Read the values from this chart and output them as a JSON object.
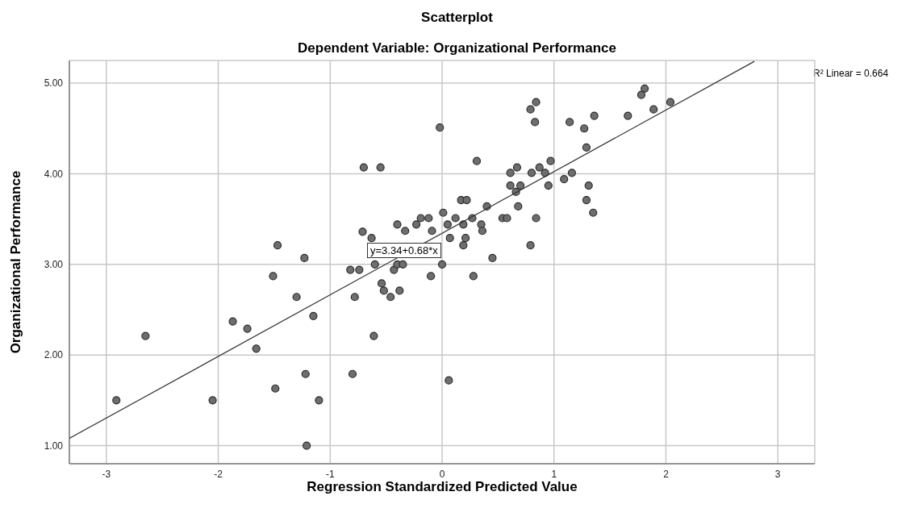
{
  "chart_data": {
    "type": "scatter",
    "title": "Scatterplot",
    "subtitle": "Dependent Variable: Organizational Performance",
    "xlabel": "Regression Standardized Predicted Value",
    "ylabel": "Organizational Performance",
    "xlim": [
      -3.33,
      3.33
    ],
    "xticks": [
      -3,
      -2,
      -1,
      0,
      1,
      2,
      3
    ],
    "ylim": [
      0.8,
      5.25
    ],
    "yticks": [
      {
        "value": 1,
        "label": "1.00"
      },
      {
        "value": 2,
        "label": "2.00"
      },
      {
        "value": 3,
        "label": "3.00"
      },
      {
        "value": 4,
        "label": "4.00"
      },
      {
        "value": 5,
        "label": "5.00"
      }
    ],
    "grid": true,
    "annotations": [
      "R² Linear = 0.664",
      "y=3.34+0.68*x"
    ],
    "series": [
      {
        "marker": "circle",
        "color": "#6e6e6e",
        "x": [
          -2.91,
          -2.05,
          -2.65,
          -1.87,
          -1.74,
          -1.66,
          -1.51,
          -1.47,
          -1.23,
          -1.3,
          -1.15,
          -1.22,
          -1.49,
          -1.1,
          -1.21,
          -0.8,
          -0.61,
          -0.82,
          -0.74,
          -0.78,
          -0.54,
          -0.52,
          -0.46,
          -0.6,
          -0.63,
          -0.71,
          -0.02,
          -0.7,
          -0.55,
          0.31,
          -0.43,
          -0.4,
          -0.35,
          -0.38,
          0.06,
          -0.1,
          0.0,
          0.28,
          0.45,
          0.79,
          -0.4,
          -0.33,
          -0.23,
          -0.19,
          -0.12,
          -0.09,
          0.01,
          0.05,
          0.07,
          0.12,
          0.19,
          0.21,
          0.19,
          0.17,
          0.22,
          0.27,
          0.35,
          0.36,
          0.4,
          0.54,
          0.58,
          0.84,
          0.68,
          0.61,
          0.67,
          0.61,
          0.7,
          0.66,
          0.8,
          0.87,
          0.92,
          0.97,
          0.95,
          1.09,
          1.16,
          0.83,
          1.14,
          0.84,
          0.79,
          1.27,
          1.36,
          1.66,
          1.81,
          1.78,
          1.89,
          2.04,
          1.29,
          1.31,
          1.29,
          1.35
        ],
        "values": [
          1.5,
          1.5,
          2.21,
          2.37,
          2.29,
          2.07,
          2.87,
          3.21,
          3.07,
          2.64,
          2.43,
          1.79,
          1.63,
          1.5,
          1.0,
          1.79,
          2.21,
          2.94,
          2.94,
          2.64,
          2.79,
          2.71,
          2.64,
          3.0,
          3.29,
          3.36,
          4.51,
          4.07,
          4.07,
          4.14,
          2.94,
          3.0,
          3.0,
          2.71,
          1.72,
          2.87,
          3.0,
          2.87,
          3.07,
          3.21,
          3.44,
          3.37,
          3.44,
          3.51,
          3.51,
          3.37,
          3.57,
          3.44,
          3.29,
          3.51,
          3.44,
          3.29,
          3.21,
          3.71,
          3.71,
          3.51,
          3.44,
          3.37,
          3.64,
          3.51,
          3.51,
          3.51,
          3.64,
          4.01,
          4.07,
          3.87,
          3.87,
          3.8,
          4.01,
          4.07,
          4.01,
          4.14,
          3.87,
          3.94,
          4.01,
          4.57,
          4.57,
          4.79,
          4.71,
          4.5,
          4.64,
          4.64,
          4.94,
          4.87,
          4.71,
          4.79,
          4.29,
          3.87,
          3.71,
          3.57
        ]
      },
      {
        "type": "line",
        "color": "#333333",
        "x": [
          -3.33,
          2.79
        ],
        "values": [
          1.08,
          5.24
        ]
      }
    ]
  }
}
